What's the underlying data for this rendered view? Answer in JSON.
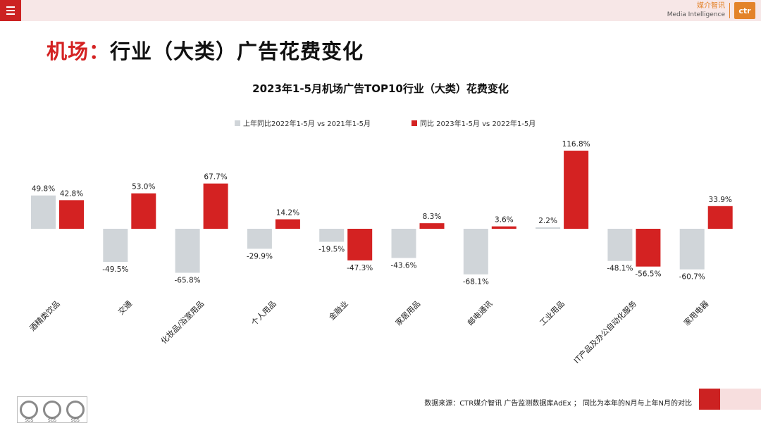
{
  "header": {
    "brand_cn": "媒介智讯",
    "brand_en": "Media Intelligence",
    "brand_logo": "ctr",
    "menu_icon": "hamburger-menu-icon"
  },
  "page": {
    "title_prefix": "机场：",
    "title_main": "行业（大类）广告花费变化"
  },
  "colors": {
    "accent": "#cc2222",
    "series_prev": "#d0d5d9",
    "series_curr": "#d42222"
  },
  "chart_data": {
    "type": "bar",
    "title": "2023年1-5月机场广告TOP10行业（大类）花费变化",
    "categories": [
      "酒精类饮品",
      "交通",
      "化妆品/浴室用品",
      "个人用品",
      "金融业",
      "家居用品",
      "邮电通讯",
      "工业用品",
      "IT产品及办公自动化服务",
      "家用电器"
    ],
    "series": [
      {
        "name": "上年同比2022年1-5月  vs  2021年1-5月",
        "values": [
          49.8,
          -49.5,
          -65.8,
          -29.9,
          -19.5,
          -43.6,
          -68.1,
          2.2,
          -48.1,
          -60.7
        ],
        "labels": [
          "49.8%",
          "-49.5%",
          "-65.8%",
          "-29.9%",
          "-19.5%",
          "-43.6%",
          "-68.1%",
          "2.2%",
          "-48.1%",
          "-60.7%"
        ]
      },
      {
        "name": "同比 2023年1-5月  vs  2022年1-5月",
        "values": [
          42.8,
          53.0,
          67.7,
          14.2,
          -47.3,
          8.3,
          3.6,
          116.8,
          -56.5,
          33.9
        ],
        "labels": [
          "42.8%",
          "53.0%",
          "67.7%",
          "14.2%",
          "-47.3%",
          "8.3%",
          "3.6%",
          "116.8%",
          "-56.5%",
          "33.9%"
        ]
      }
    ],
    "unit": "%",
    "grid": false,
    "legend": "top-center"
  },
  "footer": {
    "source": "数据来源：CTR媒介智讯 广告监测数据库AdEx ； 同比为本年的N月与上年N月的对比",
    "badge_label": "SGS"
  }
}
